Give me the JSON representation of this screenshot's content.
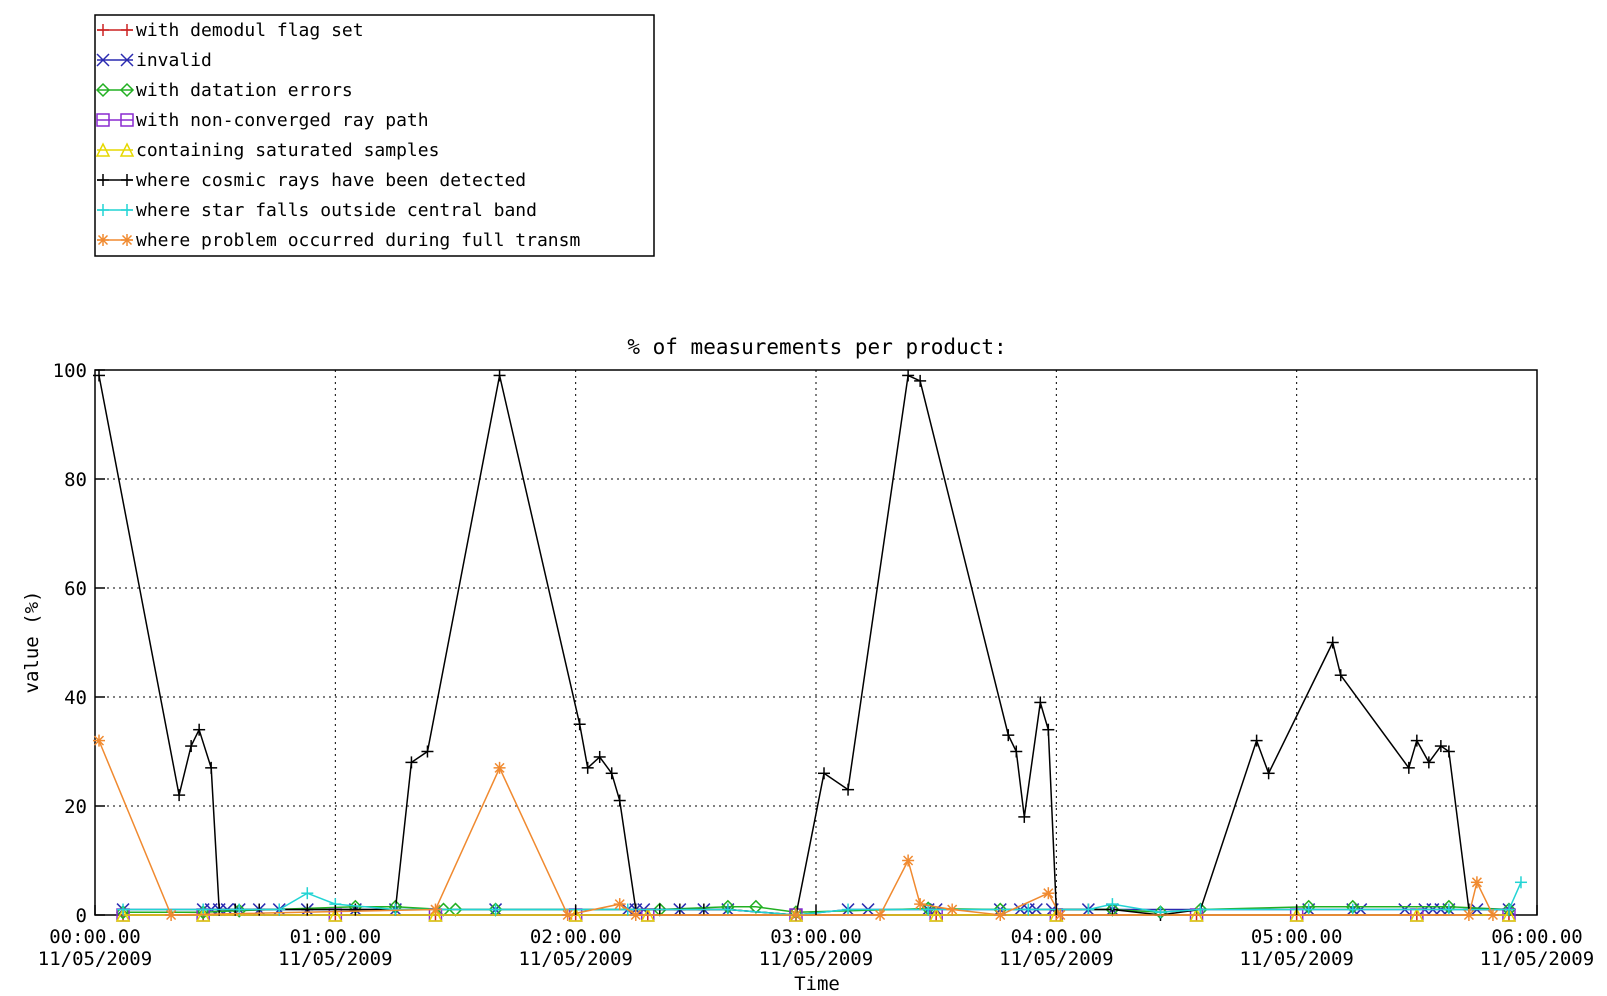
{
  "chart_data": {
    "type": "line",
    "title": "% of measurements per product:",
    "xlabel": "Time",
    "ylabel": "value (%)",
    "ylim": [
      0,
      100
    ],
    "xlim": [
      0,
      360
    ],
    "x_unit": "minutes after 00:00:00 11/05/2009",
    "grid": true,
    "legend_position": "top-left, outside plot",
    "yticks": [
      0,
      20,
      40,
      60,
      80,
      100
    ],
    "xticks": [
      {
        "value": 0,
        "line1": "00:00.00",
        "line2": "11/05/2009"
      },
      {
        "value": 60,
        "line1": "01:00.00",
        "line2": "11/05/2009"
      },
      {
        "value": 120,
        "line1": "02:00.00",
        "line2": "11/05/2009"
      },
      {
        "value": 180,
        "line1": "03:00.00",
        "line2": "11/05/2009"
      },
      {
        "value": 240,
        "line1": "04:00.00",
        "line2": "11/05/2009"
      },
      {
        "value": 300,
        "line1": "05:00.00",
        "line2": "11/05/2009"
      },
      {
        "value": 360,
        "line1": "06:00.00",
        "line2": "11/05/2009"
      }
    ],
    "series": [
      {
        "name": "with demodul flag set",
        "color": "#cc2222",
        "marker": "plus",
        "points": [
          [
            7,
            0
          ],
          [
            27,
            0
          ],
          [
            60,
            0
          ],
          [
            85,
            0
          ],
          [
            120,
            0
          ],
          [
            138,
            0
          ],
          [
            175,
            0
          ],
          [
            210,
            0
          ],
          [
            240,
            0
          ],
          [
            275,
            0
          ],
          [
            300,
            0
          ],
          [
            330,
            0
          ],
          [
            353,
            0
          ]
        ]
      },
      {
        "name": "invalid",
        "color": "#2a2ab0",
        "marker": "x",
        "points": [
          [
            7,
            1
          ],
          [
            27,
            1
          ],
          [
            29,
            1
          ],
          [
            31,
            1
          ],
          [
            33,
            1
          ],
          [
            36,
            1
          ],
          [
            41,
            1
          ],
          [
            46,
            1
          ],
          [
            53,
            1
          ],
          [
            65,
            1
          ],
          [
            75,
            1
          ],
          [
            100,
            1
          ],
          [
            133,
            1
          ],
          [
            135,
            1
          ],
          [
            137,
            1
          ],
          [
            146,
            1
          ],
          [
            152,
            1
          ],
          [
            158,
            1
          ],
          [
            175,
            0
          ],
          [
            188,
            1
          ],
          [
            193,
            1
          ],
          [
            208,
            1
          ],
          [
            210,
            1
          ],
          [
            226,
            1
          ],
          [
            231,
            1
          ],
          [
            233,
            1
          ],
          [
            235,
            1
          ],
          [
            239,
            1
          ],
          [
            248,
            1
          ],
          [
            254,
            1
          ],
          [
            303,
            1
          ],
          [
            314,
            1
          ],
          [
            316,
            1
          ],
          [
            327,
            1
          ],
          [
            332,
            1
          ],
          [
            334,
            1
          ],
          [
            336,
            1
          ],
          [
            338,
            1
          ],
          [
            345,
            1
          ],
          [
            353,
            1
          ]
        ]
      },
      {
        "name": "with datation errors",
        "color": "#22b022",
        "marker": "diamond",
        "points": [
          [
            7,
            0.5
          ],
          [
            27,
            0.5
          ],
          [
            36,
            0.8
          ],
          [
            65,
            1.5
          ],
          [
            75,
            1.5
          ],
          [
            87,
            1
          ],
          [
            90,
            1
          ],
          [
            100,
            1
          ],
          [
            141,
            1
          ],
          [
            158,
            1.5
          ],
          [
            165,
            1.5
          ],
          [
            175,
            0.5
          ],
          [
            208,
            1.2
          ],
          [
            226,
            1
          ],
          [
            254,
            1
          ],
          [
            266,
            0.5
          ],
          [
            276,
            1
          ],
          [
            303,
            1.5
          ],
          [
            314,
            1.5
          ],
          [
            338,
            1.5
          ],
          [
            353,
            1
          ]
        ]
      },
      {
        "name": "with non-converged ray path",
        "color": "#8a2ad0",
        "marker": "square",
        "points": [
          [
            7,
            0
          ],
          [
            27,
            0
          ],
          [
            60,
            0
          ],
          [
            85,
            0
          ],
          [
            120,
            0
          ],
          [
            138,
            0
          ],
          [
            175,
            0
          ],
          [
            210,
            0
          ],
          [
            240,
            0
          ],
          [
            275,
            0
          ],
          [
            300,
            0
          ],
          [
            330,
            0
          ],
          [
            353,
            0
          ]
        ]
      },
      {
        "name": "containing saturated samples",
        "color": "#e6d800",
        "marker": "triangle",
        "points": [
          [
            7,
            0
          ],
          [
            27,
            0
          ],
          [
            60,
            0
          ],
          [
            85,
            0
          ],
          [
            120,
            0
          ],
          [
            138,
            0
          ],
          [
            175,
            0
          ],
          [
            210,
            0
          ],
          [
            240,
            0
          ],
          [
            275,
            0
          ],
          [
            300,
            0
          ],
          [
            330,
            0
          ],
          [
            353,
            0
          ]
        ]
      },
      {
        "name": "where cosmic rays have been detected",
        "color": "#000000",
        "marker": "plus",
        "points": [
          [
            1,
            99
          ],
          [
            21,
            22
          ],
          [
            24,
            31
          ],
          [
            26,
            34
          ],
          [
            29,
            27
          ],
          [
            31,
            1
          ],
          [
            35,
            1
          ],
          [
            41,
            1
          ],
          [
            46,
            1
          ],
          [
            53,
            1
          ],
          [
            65,
            1
          ],
          [
            75,
            1
          ],
          [
            79,
            28
          ],
          [
            83,
            30
          ],
          [
            101,
            99
          ],
          [
            121,
            35
          ],
          [
            123,
            27
          ],
          [
            126,
            29
          ],
          [
            129,
            26
          ],
          [
            131,
            21
          ],
          [
            135,
            1
          ],
          [
            141,
            1
          ],
          [
            146,
            1
          ],
          [
            152,
            1
          ],
          [
            158,
            1
          ],
          [
            175,
            0
          ],
          [
            182,
            26
          ],
          [
            188,
            23
          ],
          [
            203,
            99
          ],
          [
            206,
            98
          ],
          [
            228,
            33
          ],
          [
            230,
            30
          ],
          [
            232,
            18
          ],
          [
            236,
            39
          ],
          [
            238,
            34
          ],
          [
            240,
            1
          ],
          [
            248,
            1
          ],
          [
            254,
            1
          ],
          [
            266,
            0
          ],
          [
            276,
            1
          ],
          [
            290,
            32
          ],
          [
            293,
            26
          ],
          [
            309,
            50
          ],
          [
            311,
            44
          ],
          [
            328,
            27
          ],
          [
            330,
            32
          ],
          [
            333,
            28
          ],
          [
            336,
            31
          ],
          [
            338,
            30
          ],
          [
            343,
            1
          ],
          [
            353,
            1
          ]
        ]
      },
      {
        "name": "where star falls outside central band",
        "color": "#22d4d4",
        "marker": "plus",
        "points": [
          [
            7,
            1
          ],
          [
            27,
            1
          ],
          [
            36,
            1
          ],
          [
            46,
            1
          ],
          [
            53,
            4
          ],
          [
            60,
            2
          ],
          [
            75,
            1
          ],
          [
            100,
            1
          ],
          [
            133,
            1
          ],
          [
            158,
            1
          ],
          [
            175,
            0
          ],
          [
            188,
            1
          ],
          [
            208,
            1
          ],
          [
            233,
            1
          ],
          [
            248,
            1
          ],
          [
            254,
            2
          ],
          [
            266,
            0.5
          ],
          [
            276,
            1
          ],
          [
            303,
            1
          ],
          [
            314,
            1
          ],
          [
            338,
            1
          ],
          [
            353,
            1
          ],
          [
            356,
            6
          ]
        ]
      },
      {
        "name": "where problem occurred during full transm",
        "color": "#f08a30",
        "marker": "star",
        "points": [
          [
            1,
            32
          ],
          [
            19,
            0
          ],
          [
            85,
            1
          ],
          [
            101,
            27
          ],
          [
            118,
            0
          ],
          [
            131,
            2
          ],
          [
            135,
            0
          ],
          [
            175,
            0
          ],
          [
            196,
            0
          ],
          [
            203,
            10
          ],
          [
            206,
            2
          ],
          [
            214,
            1
          ],
          [
            226,
            0
          ],
          [
            238,
            4
          ],
          [
            241,
            0
          ],
          [
            343,
            0
          ],
          [
            345,
            6
          ],
          [
            349,
            0
          ]
        ]
      }
    ]
  }
}
